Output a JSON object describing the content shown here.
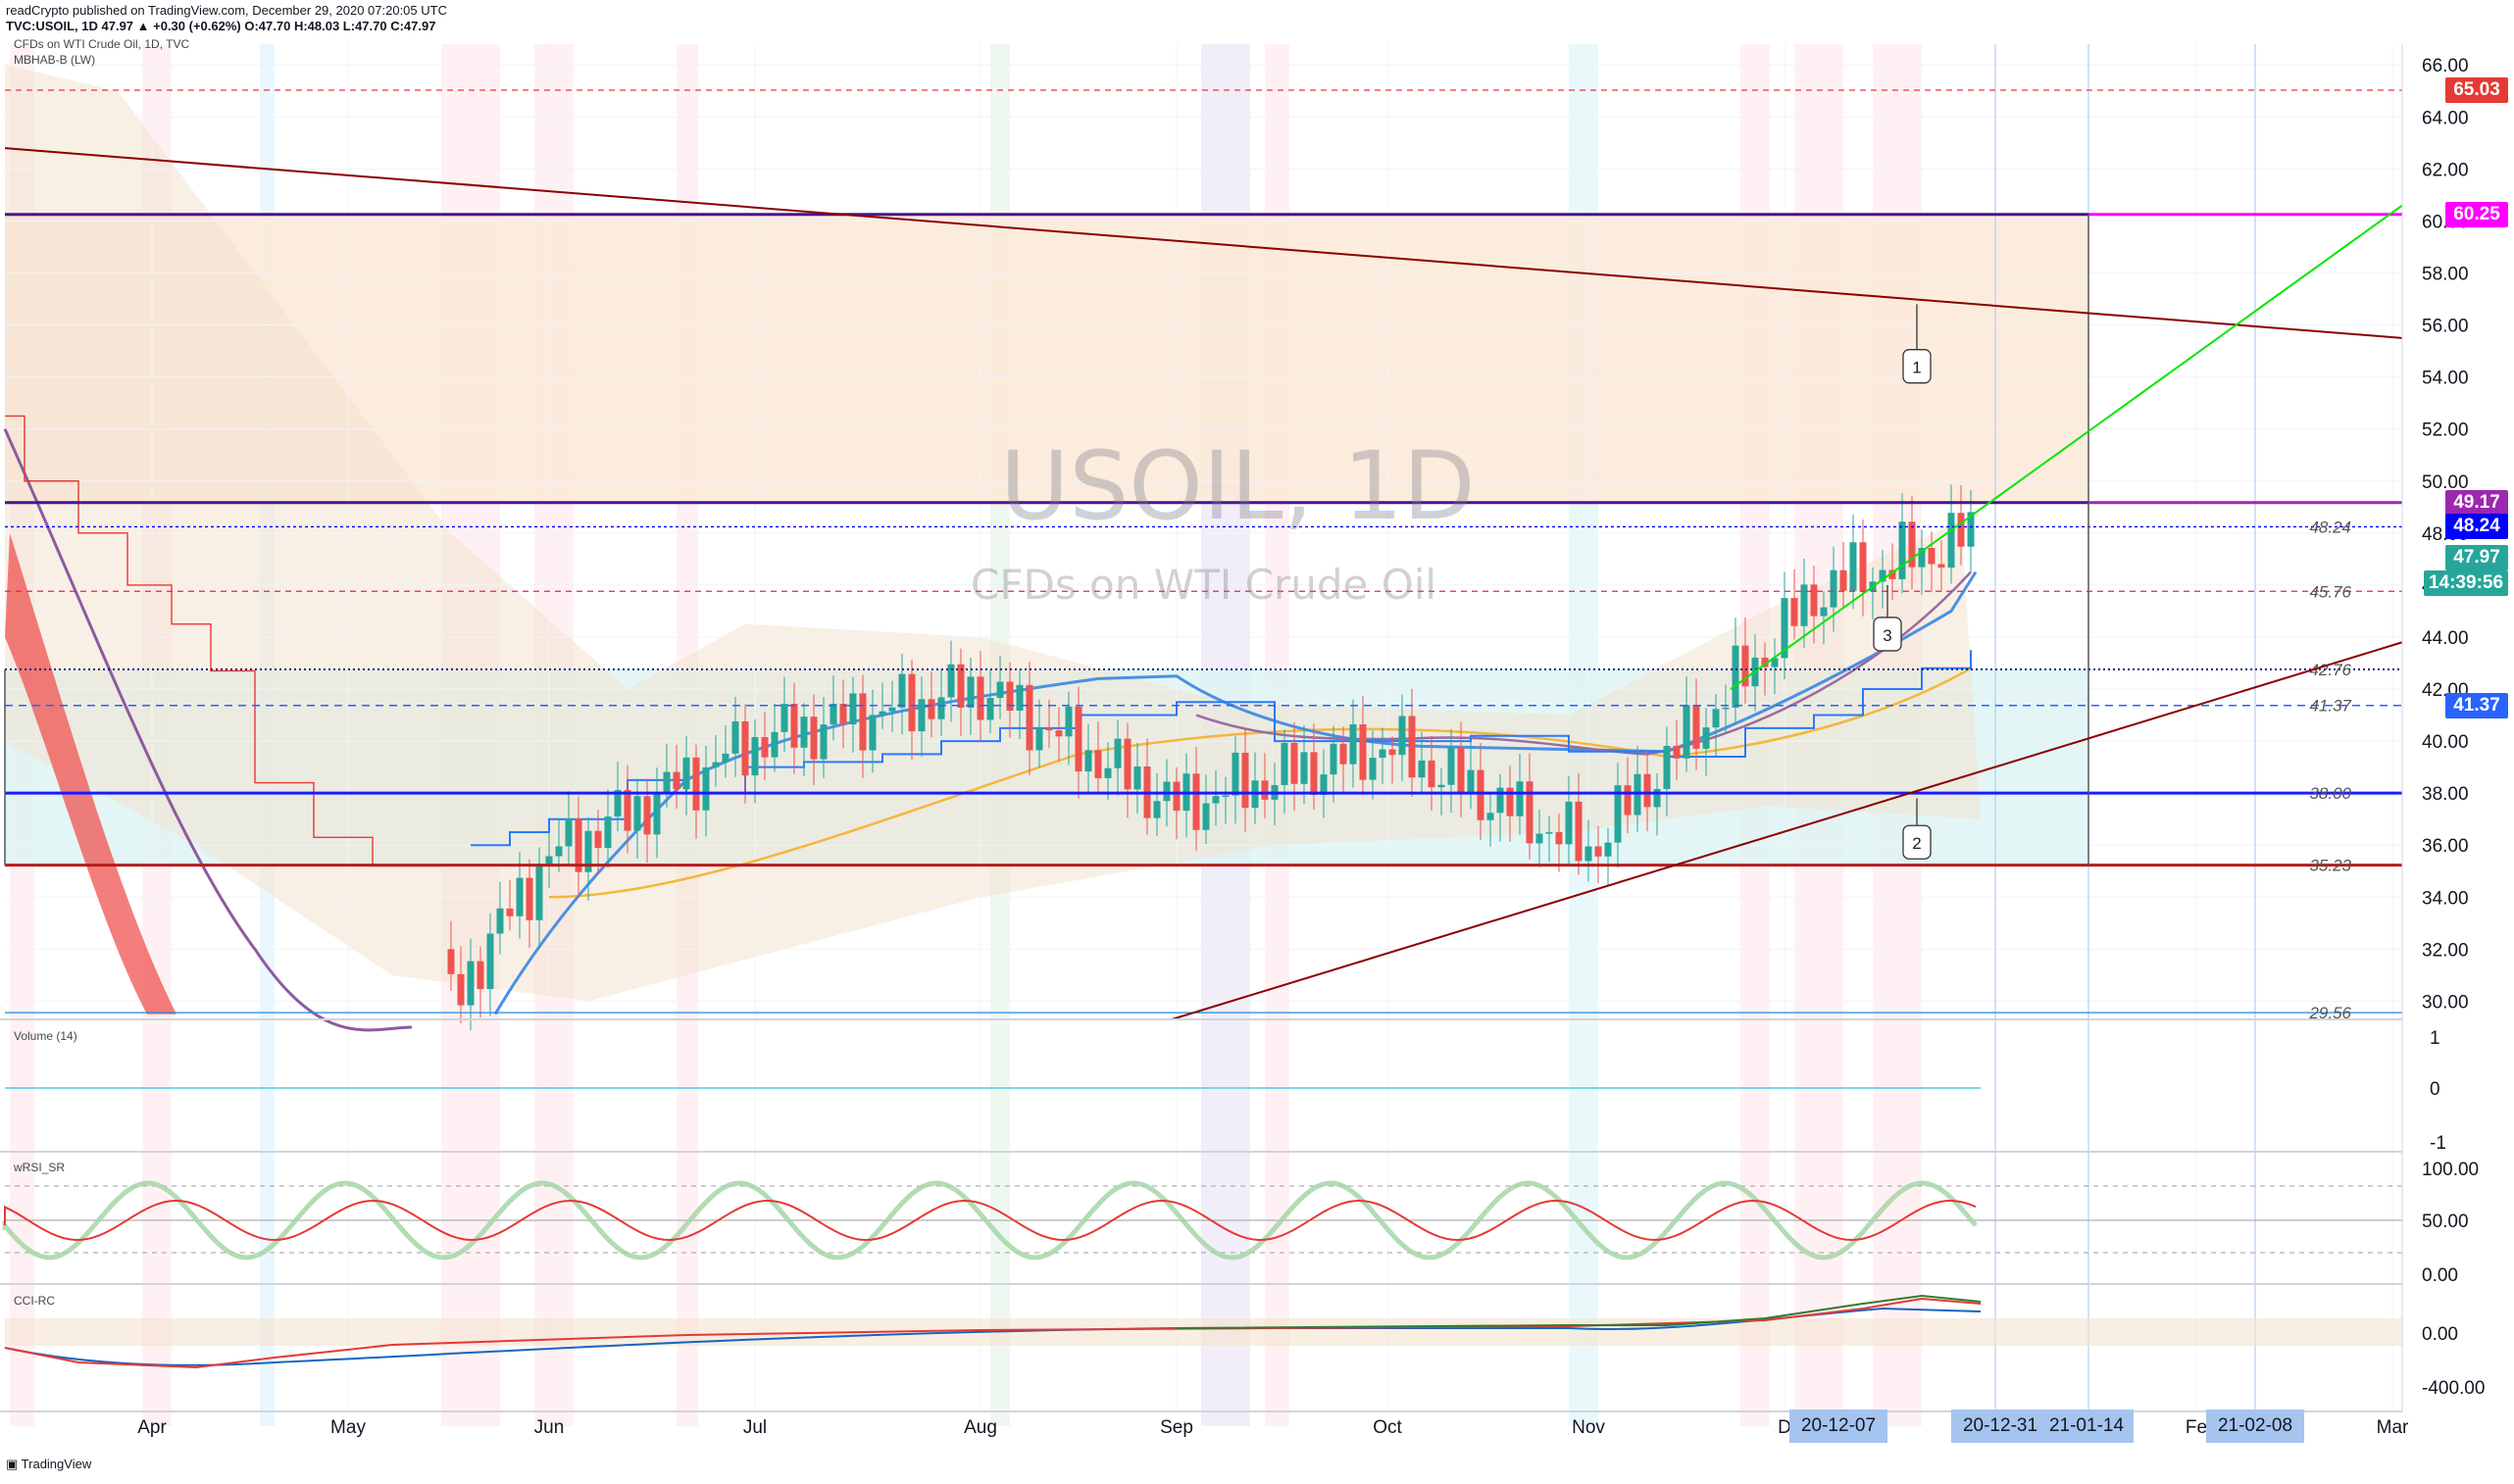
{
  "header": {
    "line1": "readCrypto published on TradingView.com, December 29, 2020 07:20:05 UTC",
    "line2": "TVC:USOIL, 1D 47.97 ▲ +0.30 (+0.62%) O:47.70 H:48.03 L:47.70 C:47.97",
    "symbol_desc": "CFDs on WTI Crude Oil, 1D, TVC",
    "indicator": "MBHAB-B (LW)"
  },
  "watermark": {
    "symbol": "USOIL, 1D",
    "name": "CFDs on WTI Crude Oil"
  },
  "panes": {
    "volume": "Volume (14)",
    "rsi": "wRSI_SR",
    "cci": "CCI-RC"
  },
  "footer": {
    "brand": "TradingView"
  },
  "colors": {
    "up_candle": "#26a69a",
    "down_candle": "#ef5350",
    "magenta": "#ff00ff",
    "violet": "#9c27b0",
    "blue_line": "#0000ff",
    "red_line": "#e53935",
    "cyan": "#00bcd4",
    "trend": "#8b0000",
    "green_line": "#00e600"
  },
  "price_labels": [
    {
      "value": "65.03",
      "color": "#e53935"
    },
    {
      "value": "60.25",
      "color": "#ff00ff"
    },
    {
      "value": "49.17",
      "color": "#9c27b0"
    },
    {
      "value": "48.24",
      "color": "#0000ff"
    },
    {
      "value": "47.97",
      "color": "#26a69a"
    },
    {
      "value": "14:39:56",
      "color": "#26a69a"
    },
    {
      "value": "41.37",
      "color": "#2962ff"
    }
  ],
  "level_labels": [
    "48.24",
    "45.76",
    "42.76",
    "41.37",
    "38.00",
    "35.23",
    "29.56"
  ],
  "callouts": [
    "1",
    "2",
    "3"
  ],
  "date_badges": [
    "20-12-07",
    "20-12-31",
    "21-01-14",
    "21-02-08"
  ],
  "chart_data": [
    {
      "type": "candlestick",
      "title": "CFDs on WTI Crude Oil, 1D, TVC",
      "x_ticks": [
        "Apr",
        "May",
        "Jun",
        "Jul",
        "Aug",
        "Sep",
        "Oct",
        "Nov",
        "D",
        "Fe",
        "Mar"
      ],
      "y_ticks": [
        "66.00",
        "64.00",
        "62.00",
        "60.00",
        "58.00",
        "56.00",
        "54.00",
        "52.00",
        "50.00",
        "48.00",
        "46.00",
        "44.00",
        "42.00",
        "40.00",
        "38.00",
        "36.00",
        "34.00",
        "32.00",
        "30.00"
      ],
      "ylim": [
        29.3,
        66.8
      ],
      "horizontal_levels": [
        65.03,
        60.25,
        49.17,
        48.24,
        45.76,
        42.76,
        41.37,
        38.0,
        35.23,
        29.56
      ],
      "close_series": [
        {
          "date": "Jun",
          "close": 35.4
        },
        {
          "date": "Jul",
          "close": 40.0
        },
        {
          "date": "Aug",
          "close": 42.0
        },
        {
          "date": "Sep",
          "close": 37.5
        },
        {
          "date": "Oct",
          "close": 39.8
        },
        {
          "date": "Nov",
          "close": 35.8
        },
        {
          "date": "20-12-07",
          "close": 45.8
        },
        {
          "date": "20-12-29",
          "close": 47.97
        }
      ]
    },
    {
      "type": "line",
      "title": "Volume (14)",
      "y_ticks": [
        "1",
        "0",
        "-1"
      ],
      "ylim": [
        -1,
        1
      ]
    },
    {
      "type": "line",
      "title": "wRSI_SR",
      "y_ticks": [
        "100.00",
        "50.00",
        "0.00"
      ],
      "ylim": [
        0,
        100
      ]
    },
    {
      "type": "line",
      "title": "CCI-RC",
      "y_ticks": [
        "0.00",
        "-400.00"
      ]
    }
  ]
}
